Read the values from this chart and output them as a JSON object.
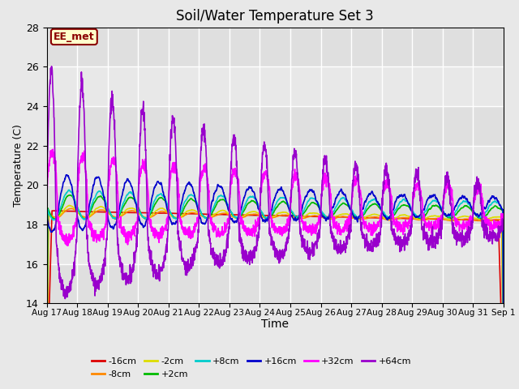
{
  "title": "Soil/Water Temperature Set 3",
  "xlabel": "Time",
  "ylabel": "Temperature (C)",
  "ylim": [
    14,
    28
  ],
  "yticks": [
    14,
    16,
    18,
    20,
    22,
    24,
    26,
    28
  ],
  "bg_color": "#e8e8e8",
  "grid_color": "white",
  "annotation_text": "EE_met",
  "annotation_bg": "#ffffcc",
  "annotation_border": "#8b0000",
  "base_temp": 18.7,
  "series_order": [
    "-16cm",
    "-8cm",
    "-2cm",
    "+2cm",
    "+8cm",
    "+16cm",
    "+32cm",
    "+64cm"
  ],
  "series_colors": {
    "-16cm": "#dd0000",
    "-8cm": "#ff8800",
    "-2cm": "#dddd00",
    "+2cm": "#00bb00",
    "+8cm": "#00cccc",
    "+16cm": "#0000cc",
    "+32cm": "#ff00ff",
    "+64cm": "#9900cc"
  },
  "legend_items_row1": [
    {
      "label": "-16cm",
      "color": "#dd0000"
    },
    {
      "label": "-8cm",
      "color": "#ff8800"
    },
    {
      "label": "-2cm",
      "color": "#dddd00"
    },
    {
      "label": "+2cm",
      "color": "#00bb00"
    },
    {
      "label": "+8cm",
      "color": "#00cccc"
    },
    {
      "label": "+16cm",
      "color": "#0000cc"
    }
  ],
  "legend_items_row2": [
    {
      "label": "+32cm",
      "color": "#ff00ff"
    },
    {
      "label": "+64cm",
      "color": "#9900cc"
    }
  ]
}
